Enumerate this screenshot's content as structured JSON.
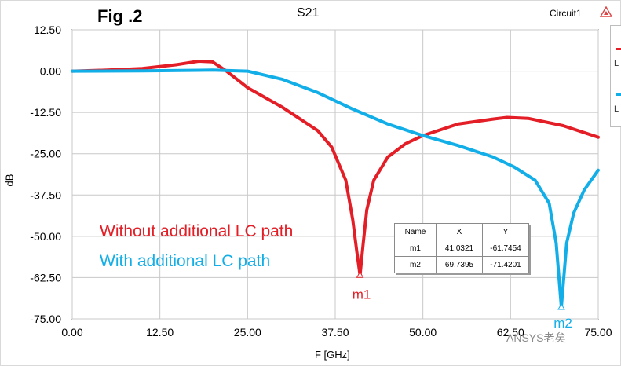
{
  "figure_label": "Fig .2",
  "window": {
    "circuit_label": "Circuit1"
  },
  "legend_panel": {
    "entry_1_letter": "L",
    "entry_2_letter": "L"
  },
  "annotations": {
    "red_label": "Without additional LC path",
    "blue_label": "With additional LC path"
  },
  "marker_table": {
    "headers": [
      "Name",
      "X",
      "Y"
    ],
    "rows": [
      {
        "name": "m1",
        "x": "41.0321",
        "y": "-61.7454"
      },
      {
        "name": "m2",
        "x": "69.7395",
        "y": "-71.4201"
      }
    ]
  },
  "watermark": "ANSYS老矣",
  "chart_data": {
    "type": "line",
    "title": "S21",
    "xlabel": "F [GHz]",
    "ylabel": "dB",
    "xlim": [
      0,
      75
    ],
    "ylim": [
      -75,
      12.5
    ],
    "x_ticks": [
      "0.00",
      "12.50",
      "25.00",
      "37.50",
      "50.00",
      "62.50",
      "75.00"
    ],
    "y_ticks": [
      "12.50",
      "0.00",
      "-12.50",
      "-25.00",
      "-37.50",
      "-50.00",
      "-62.50",
      "-75.00"
    ],
    "grid": true,
    "series": [
      {
        "color": "#e41e26",
        "x": [
          0,
          5,
          10,
          15,
          18,
          20,
          22,
          25,
          30,
          35,
          37,
          39,
          40,
          40.6,
          41.0321,
          41.5,
          42,
          43,
          45,
          47.5,
          50,
          55,
          60,
          62,
          65,
          70,
          75
        ],
        "y": [
          0,
          0.3,
          0.8,
          2,
          3,
          2.8,
          0,
          -5,
          -11,
          -18,
          -23,
          -33,
          -45,
          -55,
          -61.7454,
          -52,
          -42,
          -33,
          -26,
          -22,
          -19.5,
          -16,
          -14.5,
          -14,
          -14.3,
          -16.5,
          -20
        ]
      },
      {
        "color": "#12aee8",
        "x": [
          0,
          10,
          20,
          25,
          30,
          35,
          40,
          45,
          50,
          55,
          60,
          63,
          66,
          68,
          69,
          69.7395,
          70.5,
          71.5,
          73,
          75
        ],
        "y": [
          0,
          0.1,
          0.3,
          0,
          -2.5,
          -6.5,
          -11.5,
          -16,
          -19.5,
          -22.5,
          -26,
          -29,
          -33,
          -40,
          -52,
          -71.4201,
          -52,
          -43,
          -36,
          -30
        ]
      }
    ],
    "markers": [
      {
        "name": "m1",
        "x": 41.0321,
        "y": -61.7454,
        "series": 0
      },
      {
        "name": "m2",
        "x": 69.7395,
        "y": -71.4201,
        "series": 1
      }
    ]
  }
}
